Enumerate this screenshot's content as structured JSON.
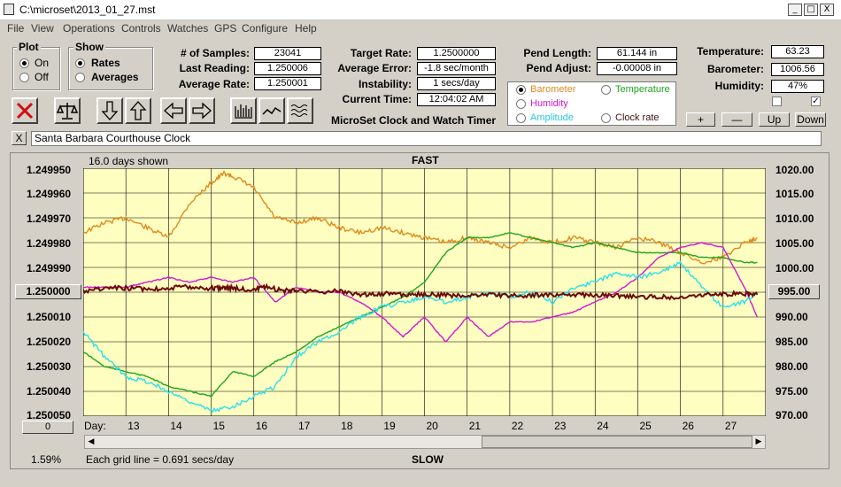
{
  "window": {
    "title": "C:\\microset\\2013_01_27.mst",
    "min": "_",
    "max": "□",
    "close": "X"
  },
  "menu": [
    "File",
    "View",
    "Operations",
    "Controls",
    "Watches",
    "GPS",
    "Configure",
    "Help"
  ],
  "plot_group": {
    "title": "Plot",
    "options": [
      "On",
      "Off"
    ],
    "selected": "On"
  },
  "show_group": {
    "title": "Show",
    "options": [
      "Rates",
      "Averages"
    ],
    "selected": "Rates"
  },
  "stats": {
    "samples_label": "# of Samples:",
    "samples": "23041",
    "last_label": "Last Reading:",
    "last": "1.250006",
    "avg_label": "Average Rate:",
    "avg": "1.250001"
  },
  "target": {
    "target_label": "Target Rate:",
    "target": "1.2500000",
    "err_label": "Average Error:",
    "err": "-1.8 sec/month",
    "instab_label": "Instability:",
    "instab": "1 secs/day",
    "time_label": "Current Time:",
    "time": "12:04:02 AM"
  },
  "pend": {
    "length_label": "Pend Length:",
    "length": "61.144 in",
    "adjust_label": "Pend Adjust:",
    "adjust": "-0.00008 in"
  },
  "env": {
    "temp_label": "Temperature:",
    "temp": "63.23",
    "baro_label": "Barometer:",
    "baro": "1006.56",
    "hum_label": "Humidity:",
    "hum": "47%"
  },
  "series_select": {
    "barometer": "Barometer",
    "temperature": "Temperature",
    "humidity": "Humidity",
    "amplitude": "Amplitude",
    "clock_rate": "Clock rate"
  },
  "colors": {
    "barometer": "#e08a1e",
    "temperature": "#1fa51f",
    "humidity": "#d317d3",
    "amplitude": "#28e0ee",
    "rate": "#6b0b0b",
    "plot_bg": "#fefec0"
  },
  "app_caption": "MicroSet Clock and Watch Timer",
  "buttons": {
    "plus": "+",
    "minus": "—",
    "up": "Up",
    "down": "Down"
  },
  "clock_name": "Santa Barbara Courthouse Clock",
  "close_x": "X",
  "chart": {
    "days_shown": "16.0 days shown",
    "fast": "FAST",
    "slow": "SLOW",
    "center_rate": "1.250000",
    "center_right": "995.00",
    "zero_box": "0",
    "pct": "1.59%",
    "grid_note": "Each grid line = 0.691 secs/day",
    "day_label": "Day:"
  },
  "chart_data": {
    "type": "line",
    "left_ticks": [
      "1.249950",
      "1.249960",
      "1.249970",
      "1.249980",
      "1.249990",
      "1.250010",
      "1.250020",
      "1.250030",
      "1.250040",
      "1.250050"
    ],
    "right_ticks": [
      "1020.00",
      "1015.00",
      "1010.00",
      "1005.00",
      "1000.00",
      "990.00",
      "985.00",
      "980.00",
      "975.00",
      "970.00"
    ],
    "days": [
      "13",
      "14",
      "15",
      "16",
      "17",
      "18",
      "19",
      "20",
      "21",
      "22",
      "23",
      "24",
      "25",
      "26",
      "27"
    ],
    "day_range": [
      12.0,
      28.0
    ],
    "right_range": [
      970,
      1020
    ],
    "series": [
      {
        "name": "Barometer",
        "color": "barometer",
        "points": [
          [
            12.0,
            1007
          ],
          [
            12.5,
            1009
          ],
          [
            13.0,
            1010
          ],
          [
            13.5,
            1008
          ],
          [
            14.0,
            1006
          ],
          [
            14.5,
            1013
          ],
          [
            15.0,
            1017
          ],
          [
            15.3,
            1019
          ],
          [
            15.6,
            1018
          ],
          [
            16.0,
            1016
          ],
          [
            16.5,
            1010
          ],
          [
            17.0,
            1009
          ],
          [
            17.5,
            1010
          ],
          [
            18.0,
            1008
          ],
          [
            18.5,
            1007
          ],
          [
            19.0,
            1008
          ],
          [
            19.5,
            1007
          ],
          [
            20.0,
            1006
          ],
          [
            20.5,
            1005
          ],
          [
            21.0,
            1006
          ],
          [
            21.5,
            1005
          ],
          [
            22.0,
            1004
          ],
          [
            22.5,
            1006
          ],
          [
            23.0,
            1005
          ],
          [
            23.5,
            1006
          ],
          [
            24.0,
            1005
          ],
          [
            24.5,
            1004
          ],
          [
            25.0,
            1006
          ],
          [
            25.5,
            1005
          ],
          [
            26.0,
            1003
          ],
          [
            26.5,
            1001
          ],
          [
            27.0,
            1002
          ],
          [
            27.5,
            1005
          ],
          [
            27.8,
            1006
          ]
        ]
      },
      {
        "name": "Temperature",
        "color": "temperature",
        "points": [
          [
            12.0,
            983
          ],
          [
            12.5,
            980
          ],
          [
            13.0,
            979
          ],
          [
            13.5,
            978
          ],
          [
            14.0,
            976
          ],
          [
            14.5,
            975
          ],
          [
            15.0,
            974
          ],
          [
            15.5,
            979
          ],
          [
            16.0,
            978
          ],
          [
            16.5,
            981
          ],
          [
            17.0,
            983
          ],
          [
            17.5,
            986
          ],
          [
            18.0,
            988
          ],
          [
            18.5,
            990
          ],
          [
            19.0,
            992
          ],
          [
            19.5,
            994
          ],
          [
            20.0,
            997
          ],
          [
            20.5,
            1003
          ],
          [
            21.0,
            1006
          ],
          [
            21.5,
            1006
          ],
          [
            22.0,
            1007
          ],
          [
            22.5,
            1006
          ],
          [
            23.0,
            1005
          ],
          [
            23.5,
            1004
          ],
          [
            24.0,
            1005
          ],
          [
            24.5,
            1004
          ],
          [
            25.0,
            1003
          ],
          [
            25.5,
            1003
          ],
          [
            26.0,
            1003
          ],
          [
            26.5,
            1002
          ],
          [
            27.0,
            1002
          ],
          [
            27.5,
            1001
          ],
          [
            27.8,
            1001
          ]
        ]
      },
      {
        "name": "Humidity",
        "color": "humidity",
        "points": [
          [
            12.0,
            996
          ],
          [
            12.5,
            996
          ],
          [
            13.0,
            996
          ],
          [
            13.5,
            997
          ],
          [
            14.0,
            998
          ],
          [
            14.5,
            997
          ],
          [
            15.0,
            998
          ],
          [
            15.5,
            997
          ],
          [
            16.0,
            998
          ],
          [
            16.5,
            993
          ],
          [
            17.0,
            996
          ],
          [
            17.5,
            995
          ],
          [
            18.0,
            995
          ],
          [
            18.5,
            993
          ],
          [
            19.0,
            990
          ],
          [
            19.5,
            986
          ],
          [
            20.0,
            990
          ],
          [
            20.5,
            985
          ],
          [
            21.0,
            990
          ],
          [
            21.5,
            986
          ],
          [
            22.0,
            989
          ],
          [
            22.5,
            989
          ],
          [
            23.0,
            990
          ],
          [
            23.5,
            991
          ],
          [
            24.0,
            993
          ],
          [
            24.5,
            995
          ],
          [
            25.0,
            998
          ],
          [
            25.5,
            1002
          ],
          [
            26.0,
            1004
          ],
          [
            26.5,
            1005
          ],
          [
            27.0,
            1004
          ],
          [
            27.5,
            996
          ],
          [
            27.8,
            990
          ]
        ]
      },
      {
        "name": "Amplitude",
        "color": "amplitude",
        "points": [
          [
            12.0,
            987
          ],
          [
            12.5,
            982
          ],
          [
            13.0,
            978
          ],
          [
            13.5,
            977
          ],
          [
            14.0,
            975
          ],
          [
            14.5,
            973
          ],
          [
            15.0,
            971
          ],
          [
            15.5,
            972
          ],
          [
            16.0,
            974
          ],
          [
            16.5,
            976
          ],
          [
            17.0,
            982
          ],
          [
            17.5,
            985
          ],
          [
            18.0,
            987
          ],
          [
            18.5,
            990
          ],
          [
            19.0,
            992
          ],
          [
            19.5,
            993
          ],
          [
            20.0,
            994
          ],
          [
            20.5,
            993
          ],
          [
            21.0,
            994
          ],
          [
            21.5,
            995
          ],
          [
            22.0,
            994
          ],
          [
            22.5,
            995
          ],
          [
            23.0,
            993
          ],
          [
            23.5,
            996
          ],
          [
            24.0,
            997
          ],
          [
            24.5,
            999
          ],
          [
            25.0,
            998
          ],
          [
            25.5,
            999
          ],
          [
            26.0,
            1001
          ],
          [
            26.5,
            996
          ],
          [
            27.0,
            992
          ],
          [
            27.5,
            993
          ],
          [
            27.8,
            995
          ]
        ]
      },
      {
        "name": "Clock rate",
        "color": "rate",
        "points": [
          [
            12.0,
            1.2499995
          ],
          [
            12.5,
            1.2499985
          ],
          [
            13.0,
            1.2499983
          ],
          [
            13.5,
            1.2499988
          ],
          [
            14.0,
            1.2499983
          ],
          [
            14.5,
            1.2499978
          ],
          [
            15.0,
            1.2499985
          ],
          [
            15.3,
            1.249998
          ],
          [
            15.6,
            1.2499985
          ],
          [
            16.0,
            1.249999
          ],
          [
            16.3,
            1.249998
          ],
          [
            16.7,
            1.2499995
          ],
          [
            17.0,
            1.249999
          ],
          [
            17.5,
            1.25
          ],
          [
            18.0,
            1.2499995
          ],
          [
            18.5,
            1.250001
          ],
          [
            19.0,
            1.2500005
          ],
          [
            19.5,
            1.250001
          ],
          [
            20.0,
            1.2500008
          ],
          [
            20.5,
            1.2500012
          ],
          [
            21.0,
            1.2500015
          ],
          [
            21.5,
            1.250001
          ],
          [
            22.0,
            1.2500015
          ],
          [
            22.5,
            1.2500012
          ],
          [
            23.0,
            1.2500013
          ],
          [
            23.5,
            1.250001
          ],
          [
            24.0,
            1.2500012
          ],
          [
            24.5,
            1.2500015
          ],
          [
            25.0,
            1.250002
          ],
          [
            25.5,
            1.2500018
          ],
          [
            26.0,
            1.250002
          ],
          [
            26.5,
            1.250001
          ],
          [
            27.0,
            1.2500008
          ],
          [
            27.5,
            1.2500005
          ],
          [
            27.8,
            1.250001
          ]
        ]
      }
    ]
  }
}
